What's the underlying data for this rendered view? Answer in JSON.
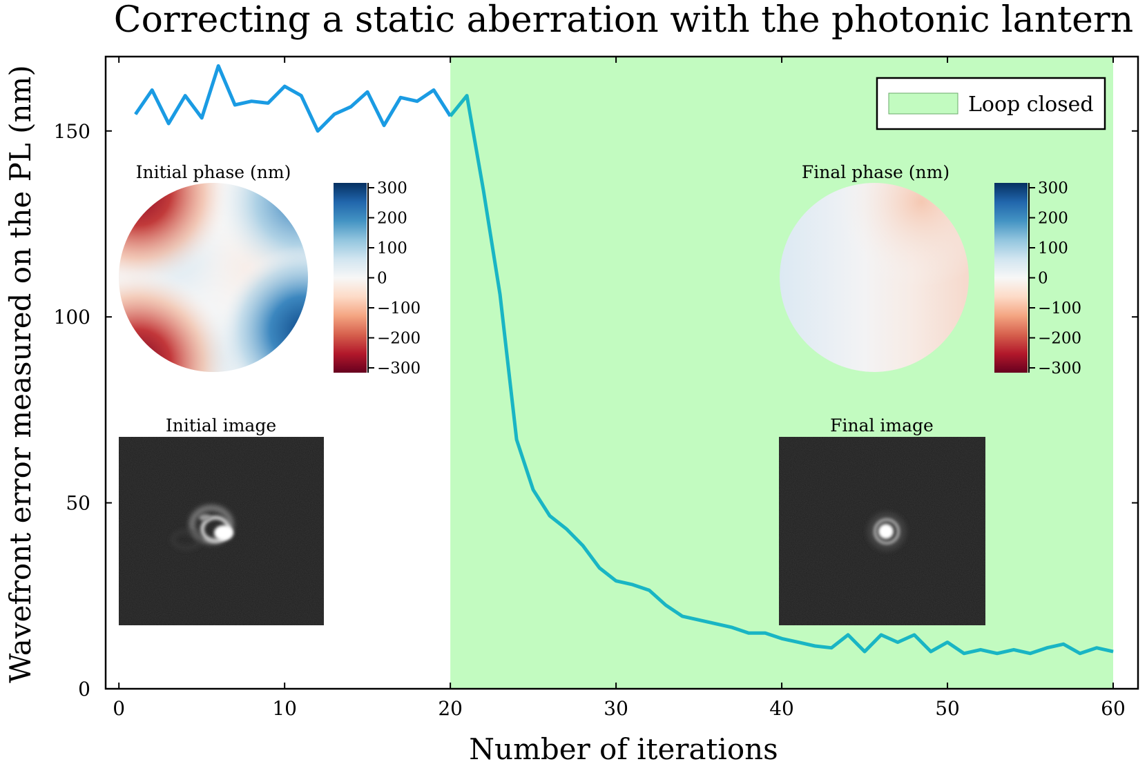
{
  "chart_data": {
    "type": "line",
    "title": "Correcting a static aberration with the photonic lantern",
    "xlabel": "Number of iterations",
    "ylabel": "Wavefront error measured on the PL (nm)",
    "xlim": [
      -0.8,
      61.5
    ],
    "ylim": [
      0,
      170
    ],
    "x_ticks": [
      0,
      10,
      20,
      30,
      40,
      50,
      60
    ],
    "y_ticks": [
      0,
      50,
      100,
      150
    ],
    "grid": false,
    "legend": {
      "position": "top-right",
      "entries": [
        {
          "label": "Loop closed",
          "color": "#c2fbc0"
        }
      ]
    },
    "shaded_region": {
      "label": "Loop closed",
      "x": [
        20,
        60
      ],
      "color": "#c2fbc0"
    },
    "series": [
      {
        "color_before": "#1a9be3",
        "color_after": "#19b5c4",
        "x": [
          1,
          2,
          3,
          4,
          5,
          6,
          7,
          8,
          9,
          10,
          11,
          12,
          13,
          14,
          15,
          16,
          17,
          18,
          19,
          20,
          21,
          22,
          23,
          24,
          25,
          26,
          27,
          28,
          29,
          30,
          31,
          32,
          33,
          34,
          35,
          36,
          37,
          38,
          39,
          40,
          41,
          42,
          43,
          44,
          45,
          46,
          47,
          48,
          49,
          50,
          51,
          52,
          53,
          54,
          55,
          56,
          57,
          58,
          59,
          60
        ],
        "y": [
          154.5,
          161.0,
          152.0,
          159.5,
          153.5,
          167.5,
          157.0,
          158.0,
          157.5,
          162.0,
          159.5,
          150.0,
          154.5,
          156.5,
          160.5,
          151.5,
          159.0,
          158.0,
          161.0,
          154.0,
          159.5,
          134.0,
          106.0,
          67.0,
          53.5,
          46.5,
          43.0,
          38.5,
          32.5,
          29.0,
          28.0,
          26.5,
          22.5,
          19.5,
          18.5,
          17.5,
          16.5,
          15.0,
          15.0,
          13.5,
          12.5,
          11.5,
          11.0,
          14.5,
          10.0,
          14.5,
          12.5,
          14.5,
          10.0,
          12.5,
          9.5,
          10.5,
          9.5,
          10.5,
          9.5,
          11.0,
          12.0,
          9.5,
          11.0,
          10.0
        ]
      }
    ],
    "insets": {
      "initial_phase": {
        "title": "Initial phase (nm)",
        "colorbar_ticks": [
          "300",
          "200",
          "100",
          "0",
          "−100",
          "−200",
          "−300"
        ]
      },
      "final_phase": {
        "title": "Final phase (nm)",
        "colorbar_ticks": [
          "300",
          "200",
          "100",
          "0",
          "−100",
          "−200",
          "−300"
        ]
      },
      "initial_image": {
        "title": "Initial image"
      },
      "final_image": {
        "title": "Final image"
      }
    },
    "colormap": [
      "#67001f",
      "#b2182b",
      "#d6604d",
      "#f4a582",
      "#fddbc7",
      "#f7f7f7",
      "#d1e5f0",
      "#92c5de",
      "#4393c3",
      "#2166ac",
      "#053061"
    ]
  }
}
